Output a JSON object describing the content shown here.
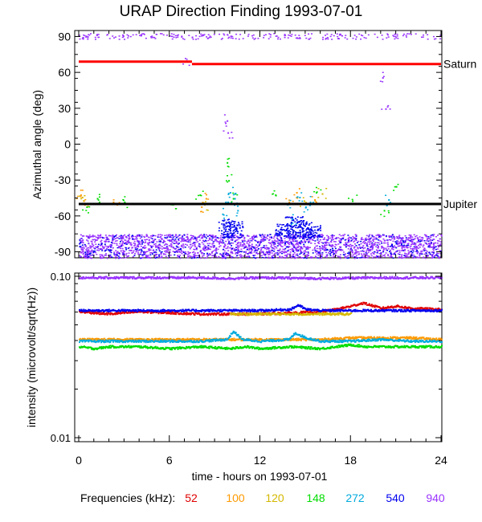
{
  "title": "URAP Direction Finding  1993-07-01",
  "chart_data": [
    {
      "type": "scatter",
      "ylabel": "Azimuthal angle (deg)",
      "ylim": [
        -95,
        95
      ],
      "yticks": [
        90,
        60,
        30,
        0,
        -30,
        -60,
        -90
      ],
      "grid": false,
      "lines": [
        {
          "name": "Saturn",
          "color": "#ff0000",
          "segments": [
            [
              [
                0,
                69
              ],
              [
                7.5,
                69
              ]
            ],
            [
              [
                7.5,
                67
              ],
              [
                24,
                67
              ]
            ]
          ]
        },
        {
          "name": "Jupiter",
          "color": "#000000",
          "segments": [
            [
              [
                0,
                -50
              ],
              [
                24,
                -50
              ]
            ]
          ]
        }
      ],
      "series": [
        {
          "name": "52",
          "color": "#e00000",
          "region": "ambient",
          "x": [],
          "y": []
        },
        {
          "name": "100",
          "color": "#ff9900",
          "region": "jupiter-band",
          "x": [
            0.1,
            0.3,
            2.5,
            8.1,
            8.4,
            13.9,
            14.4,
            15.6
          ],
          "y": [
            -42,
            -47,
            -50,
            -52,
            -45,
            -48,
            -40,
            -46
          ]
        },
        {
          "name": "120",
          "color": "#d4b800",
          "region": "jupiter-band",
          "x": [
            0.2,
            8.3,
            14.9,
            16.1
          ],
          "y": [
            -44,
            -50,
            -47,
            -41
          ]
        },
        {
          "name": "148",
          "color": "#00dd00",
          "region": "jupiter-band",
          "x": [
            0.5,
            1.2,
            3.0,
            6.2,
            8.0,
            9.8,
            9.9,
            10.2,
            13.0,
            15.7,
            18.1,
            20.2,
            21.0
          ],
          "y": [
            -52,
            -45,
            -48,
            -50,
            -42,
            -15,
            -30,
            -45,
            -42,
            -40,
            -47,
            -55,
            -35
          ]
        },
        {
          "name": "272",
          "color": "#00aadd",
          "region": "jupiter-band",
          "x": [
            9.5,
            9.7,
            10.0,
            10.3,
            10.5,
            13.8,
            14.1,
            14.6,
            15.0,
            15.3,
            20.5
          ],
          "y": [
            -58,
            -48,
            -40,
            -45,
            -55,
            -50,
            -62,
            -44,
            -52,
            -48,
            -46
          ]
        },
        {
          "name": "540",
          "color": "#0000ee",
          "region": "low-band",
          "x": [],
          "y": []
        },
        {
          "name": "940",
          "color": "#9933ff",
          "region": "low-band",
          "x": [
            9.8,
            9.85,
            20.1,
            20.3,
            7.1
          ],
          "y": [
            20,
            10,
            56,
            30,
            70
          ]
        }
      ]
    },
    {
      "type": "line",
      "xlabel": "time - hours on 1993-07-01",
      "ylabel": "intensity (microvolt/sqrt(Hz))",
      "scale": "log",
      "ylim": [
        0.01,
        0.1
      ],
      "yticks": [
        "0.10",
        "0.01"
      ],
      "xlim": [
        0,
        24
      ],
      "xticks": [
        "0",
        "6",
        "12",
        "18",
        "24"
      ],
      "series": [
        {
          "name": "52",
          "color": "#e00000",
          "x": [
            0,
            2,
            4,
            6,
            8,
            10,
            12,
            14,
            16,
            17,
            18,
            18.8,
            20,
            21,
            22,
            24
          ],
          "y": [
            0.061,
            0.059,
            0.061,
            0.06,
            0.059,
            0.059,
            0.059,
            0.06,
            0.061,
            0.063,
            0.066,
            0.069,
            0.064,
            0.066,
            0.064,
            0.063
          ]
        },
        {
          "name": "100",
          "color": "#ff9900",
          "x": [
            0,
            4,
            8,
            10,
            12,
            14,
            16,
            18,
            20,
            22,
            24
          ],
          "y": [
            0.041,
            0.041,
            0.041,
            0.041,
            0.041,
            0.041,
            0.041,
            0.042,
            0.042,
            0.042,
            0.041
          ]
        },
        {
          "name": "120",
          "color": "#d4b800",
          "x": [
            10,
            12,
            14,
            16,
            18
          ],
          "y": [
            0.059,
            0.059,
            0.059,
            0.059,
            0.059
          ]
        },
        {
          "name": "148",
          "color": "#00dd00",
          "x": [
            0,
            1,
            2,
            4,
            6,
            8,
            10,
            11,
            12,
            14,
            16,
            18,
            19,
            20,
            22,
            24
          ],
          "y": [
            0.037,
            0.036,
            0.037,
            0.037,
            0.036,
            0.037,
            0.036,
            0.037,
            0.036,
            0.037,
            0.036,
            0.038,
            0.037,
            0.037,
            0.037,
            0.037
          ]
        },
        {
          "name": "272",
          "color": "#00aadd",
          "x": [
            0,
            4,
            8,
            9.8,
            10.2,
            10.8,
            12,
            13.9,
            14.3,
            15,
            16,
            18,
            20,
            22,
            24
          ],
          "y": [
            0.04,
            0.04,
            0.04,
            0.041,
            0.046,
            0.041,
            0.04,
            0.041,
            0.045,
            0.042,
            0.04,
            0.04,
            0.041,
            0.04,
            0.04
          ]
        },
        {
          "name": "540",
          "color": "#0000ee",
          "x": [
            0,
            4,
            8,
            12,
            14,
            14.5,
            15,
            16,
            20,
            24
          ],
          "y": [
            0.062,
            0.062,
            0.062,
            0.062,
            0.063,
            0.067,
            0.063,
            0.062,
            0.062,
            0.062
          ]
        },
        {
          "name": "940",
          "color": "#9933ff",
          "x": [
            0,
            4,
            8,
            10,
            12,
            16,
            20,
            24
          ],
          "y": [
            0.099,
            0.099,
            0.099,
            0.098,
            0.099,
            0.098,
            0.099,
            0.099
          ]
        }
      ]
    }
  ],
  "legend": {
    "label": "Frequencies (kHz):",
    "items": [
      {
        "label": "52",
        "color": "#e00000"
      },
      {
        "label": "100",
        "color": "#ff9900"
      },
      {
        "label": "120",
        "color": "#d4b800"
      },
      {
        "label": "148",
        "color": "#00dd00"
      },
      {
        "label": "272",
        "color": "#00aadd"
      },
      {
        "label": "540",
        "color": "#0000ee"
      },
      {
        "label": "940",
        "color": "#9933ff"
      }
    ]
  }
}
